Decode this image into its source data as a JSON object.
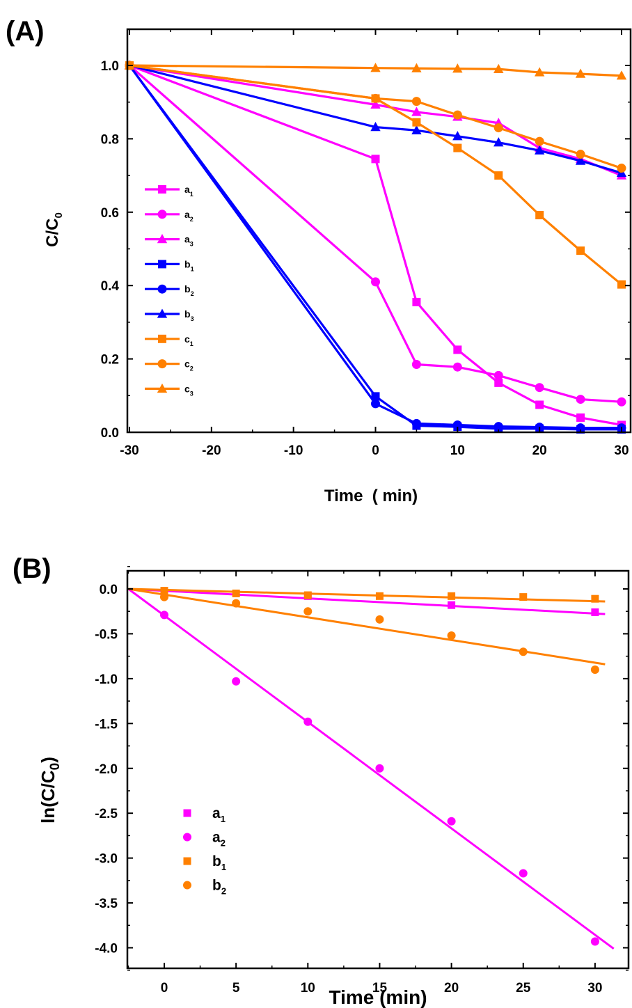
{
  "chart_data": [
    {
      "panel": "(A)",
      "type": "line",
      "xlabel": "Time  ( min)",
      "ylabel_main": "C/C",
      "ylabel_sub": "0",
      "xlim": [
        -30,
        30
      ],
      "ylim": [
        0.0,
        1.05
      ],
      "xticks": [
        "-30",
        "-20",
        "-10",
        "0",
        "10",
        "20",
        "30"
      ],
      "yticks": [
        "0.0",
        "0.2",
        "0.4",
        "0.6",
        "0.8",
        "1.0"
      ],
      "legend_position": "left",
      "colors": {
        "magenta": "#FF00FF",
        "blue": "#0000FF",
        "orange": "#FF8000"
      },
      "x": [
        -30,
        0,
        5,
        10,
        15,
        20,
        25,
        30
      ],
      "series": [
        {
          "label": "a",
          "sub": "1",
          "color": "#FF00FF",
          "marker": "square",
          "values": [
            1.0,
            0.745,
            0.355,
            0.225,
            0.135,
            0.075,
            0.04,
            0.02
          ]
        },
        {
          "label": "a",
          "sub": "2",
          "color": "#FF00FF",
          "marker": "circle",
          "values": [
            1.0,
            0.41,
            0.185,
            0.178,
            0.155,
            0.122,
            0.09,
            0.083
          ]
        },
        {
          "label": "a",
          "sub": "3",
          "color": "#FF00FF",
          "marker": "triangle",
          "values": [
            1.0,
            0.893,
            0.873,
            0.86,
            0.843,
            0.775,
            0.745,
            0.7
          ]
        },
        {
          "label": "b",
          "sub": "1",
          "color": "#0000FF",
          "marker": "square",
          "values": [
            1.0,
            0.098,
            0.018,
            0.015,
            0.01,
            0.01,
            0.008,
            0.008
          ]
        },
        {
          "label": "b",
          "sub": "2",
          "color": "#0000FF",
          "marker": "circle",
          "values": [
            1.0,
            0.078,
            0.024,
            0.02,
            0.016,
            0.014,
            0.012,
            0.012
          ]
        },
        {
          "label": "b",
          "sub": "3",
          "color": "#0000FF",
          "marker": "triangle",
          "values": [
            1.0,
            0.832,
            0.823,
            0.807,
            0.79,
            0.768,
            0.74,
            0.707
          ]
        },
        {
          "label": "c",
          "sub": "1",
          "color": "#FF8000",
          "marker": "square",
          "values": [
            1.0,
            0.91,
            0.845,
            0.775,
            0.7,
            0.592,
            0.495,
            0.403
          ]
        },
        {
          "label": "c",
          "sub": "2",
          "color": "#FF8000",
          "marker": "circle",
          "values": [
            1.0,
            0.91,
            0.902,
            0.865,
            0.83,
            0.793,
            0.758,
            0.72
          ]
        },
        {
          "label": "c",
          "sub": "3",
          "color": "#FF8000",
          "marker": "triangle",
          "values": [
            1.0,
            0.993,
            0.992,
            0.991,
            0.99,
            0.981,
            0.977,
            0.972
          ]
        }
      ]
    },
    {
      "panel": "(B)",
      "type": "scatter",
      "xlabel": "Time (min)",
      "ylabel_main": "ln(C/C",
      "ylabel_sub": "0",
      "ylabel_end": ")",
      "xlim": [
        -2.5,
        31.5
      ],
      "ylim": [
        -4.3,
        0.3
      ],
      "xticks": [
        "0",
        "5",
        "10",
        "15",
        "20",
        "25",
        "30"
      ],
      "yticks": [
        "0.0",
        "-0.5",
        "-1.0",
        "-1.5",
        "-2.0",
        "-2.5",
        "-3.0",
        "-3.5",
        "-4.0"
      ],
      "legend_position": "bottom-left",
      "series": [
        {
          "label": "a",
          "sub": "1",
          "color": "#FF00FF",
          "marker": "square",
          "x": [
            0,
            10,
            20,
            30
          ],
          "values": [
            -0.04,
            -0.08,
            -0.18,
            -0.26
          ],
          "fit": {
            "x": [
              -2.5,
              30.7
            ],
            "y": [
              0.0,
              -0.28
            ]
          }
        },
        {
          "label": "a",
          "sub": "2",
          "color": "#FF00FF",
          "marker": "circle",
          "x": [
            0,
            5,
            10,
            15,
            20,
            25,
            30
          ],
          "values": [
            -0.29,
            -1.03,
            -1.48,
            -2.0,
            -2.59,
            -3.17,
            -3.93
          ],
          "fit": {
            "x": [
              -2.5,
              31.3
            ],
            "y": [
              0.0,
              -4.01
            ]
          }
        },
        {
          "label": "b",
          "sub": "1",
          "color": "#FF8000",
          "marker": "square",
          "x": [
            0,
            5,
            10,
            15,
            20,
            25,
            30
          ],
          "values": [
            -0.02,
            -0.05,
            -0.07,
            -0.08,
            -0.08,
            -0.09,
            -0.11
          ],
          "fit": {
            "x": [
              -2.5,
              30.7
            ],
            "y": [
              0.0,
              -0.14
            ]
          }
        },
        {
          "label": "b",
          "sub": "2",
          "color": "#FF8000",
          "marker": "circle",
          "x": [
            0,
            5,
            10,
            15,
            20,
            25,
            30
          ],
          "values": [
            -0.09,
            -0.16,
            -0.25,
            -0.34,
            -0.52,
            -0.7,
            -0.9
          ],
          "fit": {
            "x": [
              -2.5,
              30.7
            ],
            "y": [
              0.0,
              -0.84
            ]
          }
        }
      ]
    }
  ]
}
